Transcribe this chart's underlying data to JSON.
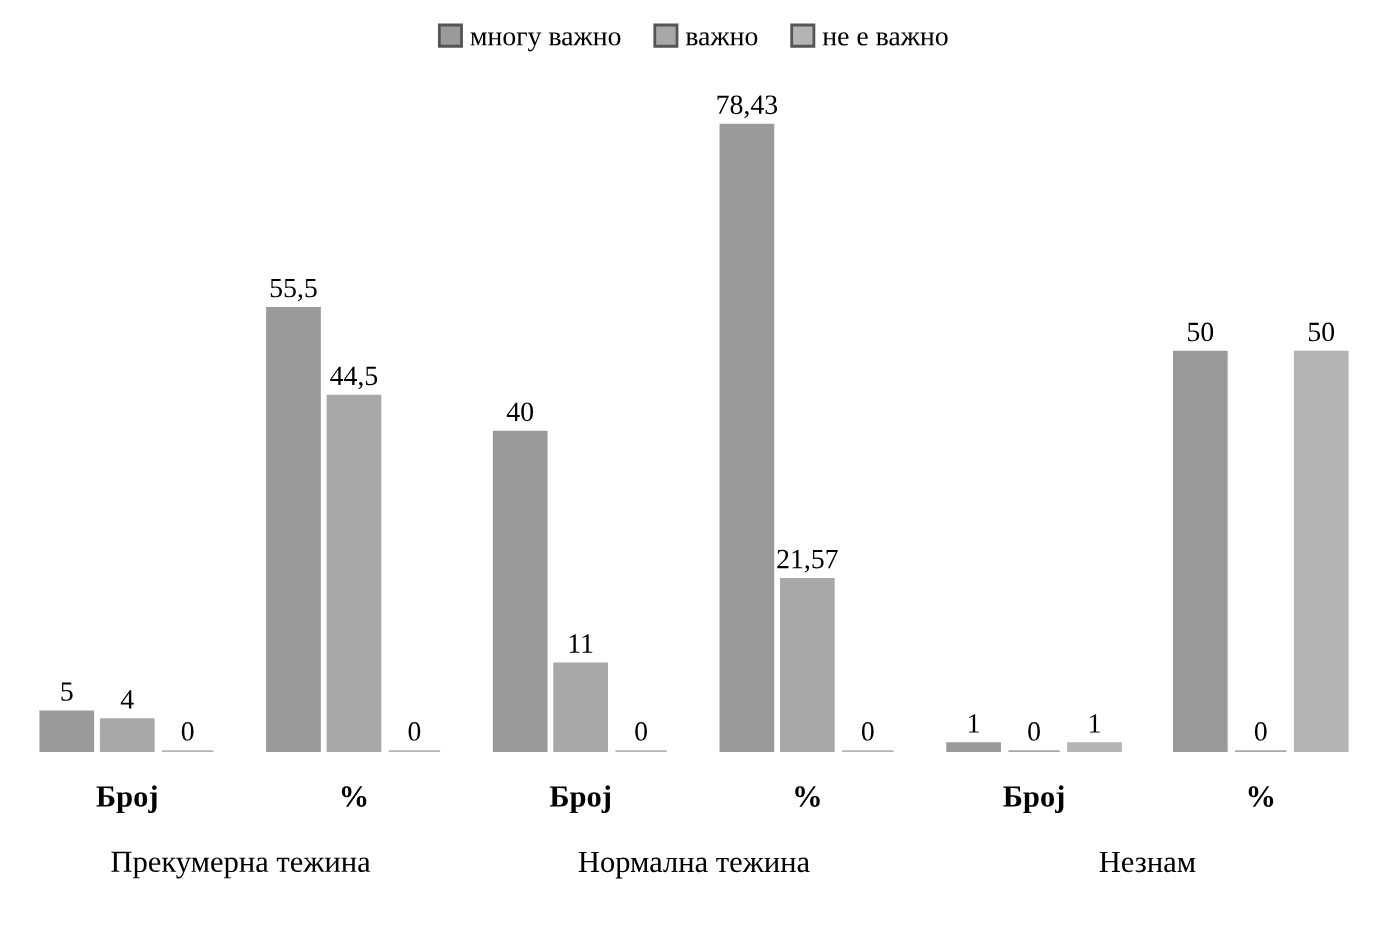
{
  "chart_data": {
    "type": "bar",
    "categories": [
      "Број",
      "%",
      "Број",
      "%",
      "Број",
      "%"
    ],
    "series": [
      {
        "name": "многу важно",
        "color": "#9a9a9a",
        "values": [
          5,
          55.5,
          40,
          78.43,
          1,
          50
        ],
        "value_labels": [
          "5",
          "55,5",
          "40",
          "78,43",
          "1",
          "50"
        ]
      },
      {
        "name": "важно",
        "color": "#a8a8a8",
        "values": [
          4,
          44.5,
          11,
          21.57,
          0,
          0
        ],
        "value_labels": [
          "4",
          "44,5",
          "11",
          "21,57",
          "0",
          "0"
        ]
      },
      {
        "name": "не е важно",
        "color": "#b4b4b4",
        "values": [
          0,
          0,
          0,
          0,
          1,
          50
        ],
        "value_labels": [
          "0",
          "0",
          "0",
          "0",
          "1",
          "50"
        ]
      }
    ],
    "annotations": [
      "Прекумерна тежина",
      "Нормална тежина",
      "Незнам"
    ],
    "legend": "top",
    "grid": false,
    "tick_labels": "x"
  }
}
